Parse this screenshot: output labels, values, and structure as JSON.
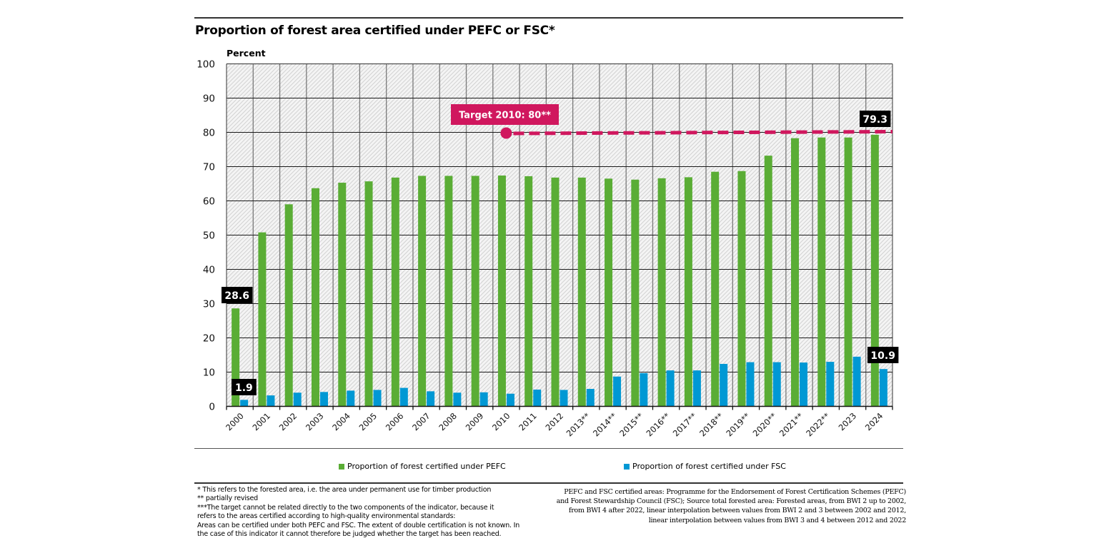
{
  "header": {
    "title": "Proportion of forest area certified under PEFC or FSC*"
  },
  "chart_data": {
    "type": "bar",
    "title": "Proportion of forest area certified under PEFC or FSC*",
    "ylabel": "Percent",
    "xlabel": "",
    "ylim": [
      0,
      100
    ],
    "yticks": [
      0,
      10,
      20,
      30,
      40,
      50,
      60,
      70,
      80,
      90,
      100
    ],
    "grid": true,
    "categories": [
      "2000",
      "2001",
      "2002",
      "2003",
      "2004",
      "2005",
      "2006",
      "2007",
      "2008",
      "2009",
      "2010",
      "2011",
      "2012",
      "2013**",
      "2014**",
      "2015**",
      "2016**",
      "2017**",
      "2018**",
      "2019**",
      "2020**",
      "2021**",
      "2022**",
      "2023",
      "2024"
    ],
    "series": [
      {
        "name": "Proportion of forest certified under PEFC",
        "color": "#5aad35",
        "values": [
          28.6,
          50.8,
          59.0,
          63.7,
          65.3,
          65.7,
          66.8,
          67.3,
          67.3,
          67.3,
          67.4,
          67.2,
          66.8,
          66.8,
          66.5,
          66.2,
          66.6,
          66.9,
          68.5,
          68.7,
          73.2,
          78.3,
          78.5,
          78.5,
          79.3
        ]
      },
      {
        "name": "Proportion of forest certified under FSC",
        "color": "#0098d4",
        "values": [
          1.9,
          3.2,
          4.0,
          4.2,
          4.6,
          4.8,
          5.4,
          4.4,
          4.0,
          4.1,
          3.7,
          4.9,
          4.8,
          5.1,
          8.7,
          9.7,
          10.5,
          10.5,
          12.4,
          12.9,
          12.9,
          12.8,
          13.0,
          14.5,
          10.9
        ]
      }
    ],
    "data_labels": [
      {
        "series": 0,
        "category": "2000",
        "text": "28.6"
      },
      {
        "series": 1,
        "category": "2000",
        "text": "1.9"
      },
      {
        "series": 0,
        "category": "2024",
        "text": "79.3"
      },
      {
        "series": 1,
        "category": "2024",
        "text": "10.9"
      }
    ],
    "target": {
      "label": "Target 2010: 80**",
      "value": 80,
      "from_category": "2010",
      "to_category": "2024",
      "color": "#d0175e"
    },
    "legend_placement": "bottom"
  },
  "legend": {
    "items": [
      {
        "label": "Proportion of forest certified under PEFC",
        "color": "#5aad35"
      },
      {
        "label": "Proportion of forest certified under FSC",
        "color": "#0098d4"
      }
    ]
  },
  "footnotes": {
    "left": [
      "* This refers to the forested area, i.e. the area under permanent use for timber production",
      "** partially revised",
      "***The target cannot be related directly to the two components of the indicator, because it",
      "refers to the areas certified according to high-quality environmental standards:",
      "Areas can be certified under both PEFC and FSC. The extent of double certification is not known. In",
      "the case of this indicator it cannot therefore be judged whether the target has been reached."
    ],
    "right": [
      "PEFC and FSC certified areas: Programme for the Endorsement of Forest Certification Schemes (PEFC)",
      "and Forest Stewardship Council (FSC); Source total forested area: Forested areas, from BWI 2 up to 2002,",
      "from BWI 4 after 2022, linear interpolation between values from BWI 2 and 3 between 2002 and 2012,",
      "linear interpolation between values from BWI 3 and 4 between 2012 and 2022"
    ]
  }
}
